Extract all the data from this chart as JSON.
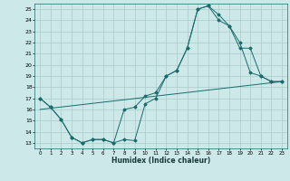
{
  "title": "",
  "xlabel": "Humidex (Indice chaleur)",
  "xlim": [
    -0.5,
    23.5
  ],
  "ylim": [
    12.5,
    25.5
  ],
  "yticks": [
    13,
    14,
    15,
    16,
    17,
    18,
    19,
    20,
    21,
    22,
    23,
    24,
    25
  ],
  "xticks": [
    0,
    1,
    2,
    3,
    4,
    5,
    6,
    7,
    8,
    9,
    10,
    11,
    12,
    13,
    14,
    15,
    16,
    17,
    18,
    19,
    20,
    21,
    22,
    23
  ],
  "bg_color": "#cce8e8",
  "grid_color": "#aacccc",
  "line_color": "#1a6b6b",
  "line1_x": [
    0,
    1,
    2,
    3,
    4,
    5,
    6,
    7,
    8,
    9,
    10,
    11,
    12,
    13,
    14,
    15,
    16,
    17,
    18,
    19,
    20,
    21,
    22,
    23
  ],
  "line1_y": [
    17.0,
    16.2,
    15.1,
    13.5,
    13.0,
    13.3,
    13.3,
    13.0,
    13.3,
    13.2,
    16.5,
    17.0,
    19.0,
    19.5,
    21.5,
    25.0,
    25.3,
    24.0,
    23.5,
    22.0,
    19.3,
    19.0,
    18.5,
    18.5
  ],
  "line2_x": [
    0,
    1,
    2,
    3,
    4,
    5,
    6,
    7,
    8,
    9,
    10,
    11,
    12,
    13,
    14,
    15,
    16,
    17,
    18,
    19,
    20,
    21,
    22,
    23
  ],
  "line2_y": [
    17.0,
    16.2,
    15.1,
    13.5,
    13.0,
    13.3,
    13.3,
    13.0,
    16.0,
    16.2,
    17.2,
    17.5,
    19.0,
    19.5,
    21.5,
    25.0,
    25.3,
    24.5,
    23.5,
    21.5,
    21.5,
    19.0,
    18.5,
    18.5
  ],
  "line3_x": [
    0,
    23
  ],
  "line3_y": [
    16.0,
    18.5
  ]
}
